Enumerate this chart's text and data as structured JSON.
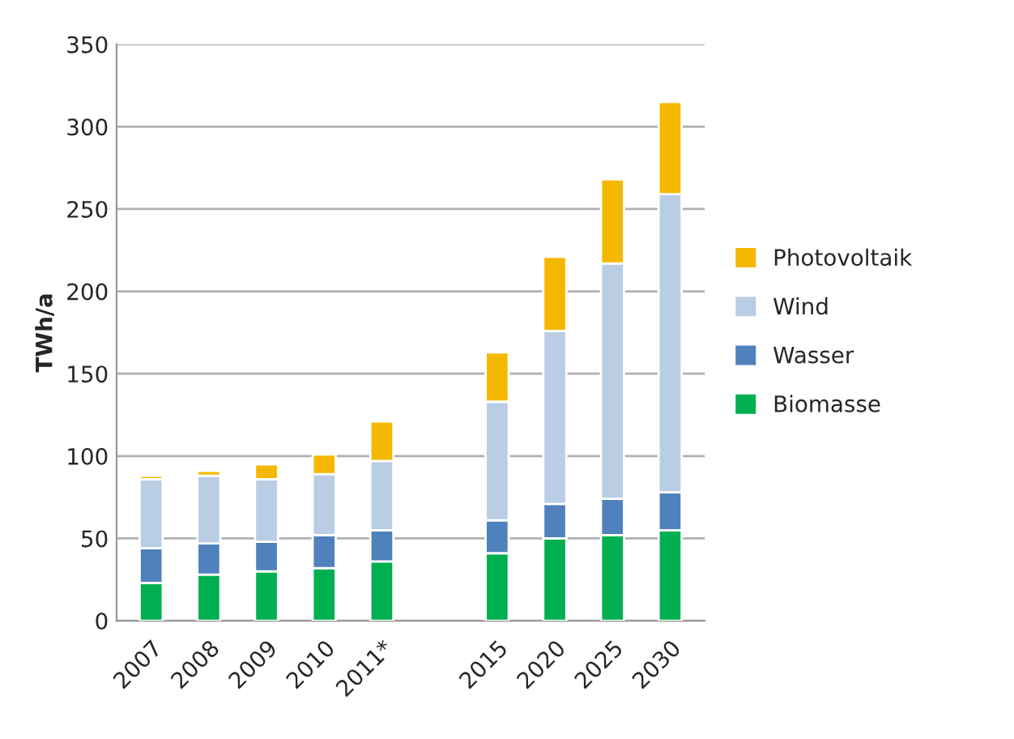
{
  "chart_data": {
    "type": "bar",
    "stacked": true,
    "ylabel": "TWh/a",
    "categories": [
      "2007",
      "2008",
      "2009",
      "2010",
      "2011*",
      null,
      "2015",
      "2020",
      "2025",
      "2030"
    ],
    "series": [
      {
        "name": "Biomasse",
        "color": "#00b050",
        "values": [
          23,
          28,
          30,
          32,
          36,
          null,
          41,
          50,
          52,
          55
        ]
      },
      {
        "name": "Wasser",
        "color": "#4f81bd",
        "values": [
          21,
          19,
          18,
          20,
          19,
          null,
          20,
          21,
          22,
          23
        ]
      },
      {
        "name": "Wind",
        "color": "#b9cde5",
        "values": [
          42,
          41,
          38,
          37,
          42,
          null,
          72,
          105,
          143,
          181
        ]
      },
      {
        "name": "Photovoltaik",
        "color": "#f5b800",
        "values": [
          2,
          3,
          9,
          12,
          24,
          null,
          30,
          45,
          51,
          56
        ]
      }
    ],
    "ylim": [
      0,
      350
    ],
    "yticks": [
      0,
      50,
      100,
      150,
      200,
      250,
      300,
      350
    ],
    "grid": "y",
    "legend": "right"
  }
}
